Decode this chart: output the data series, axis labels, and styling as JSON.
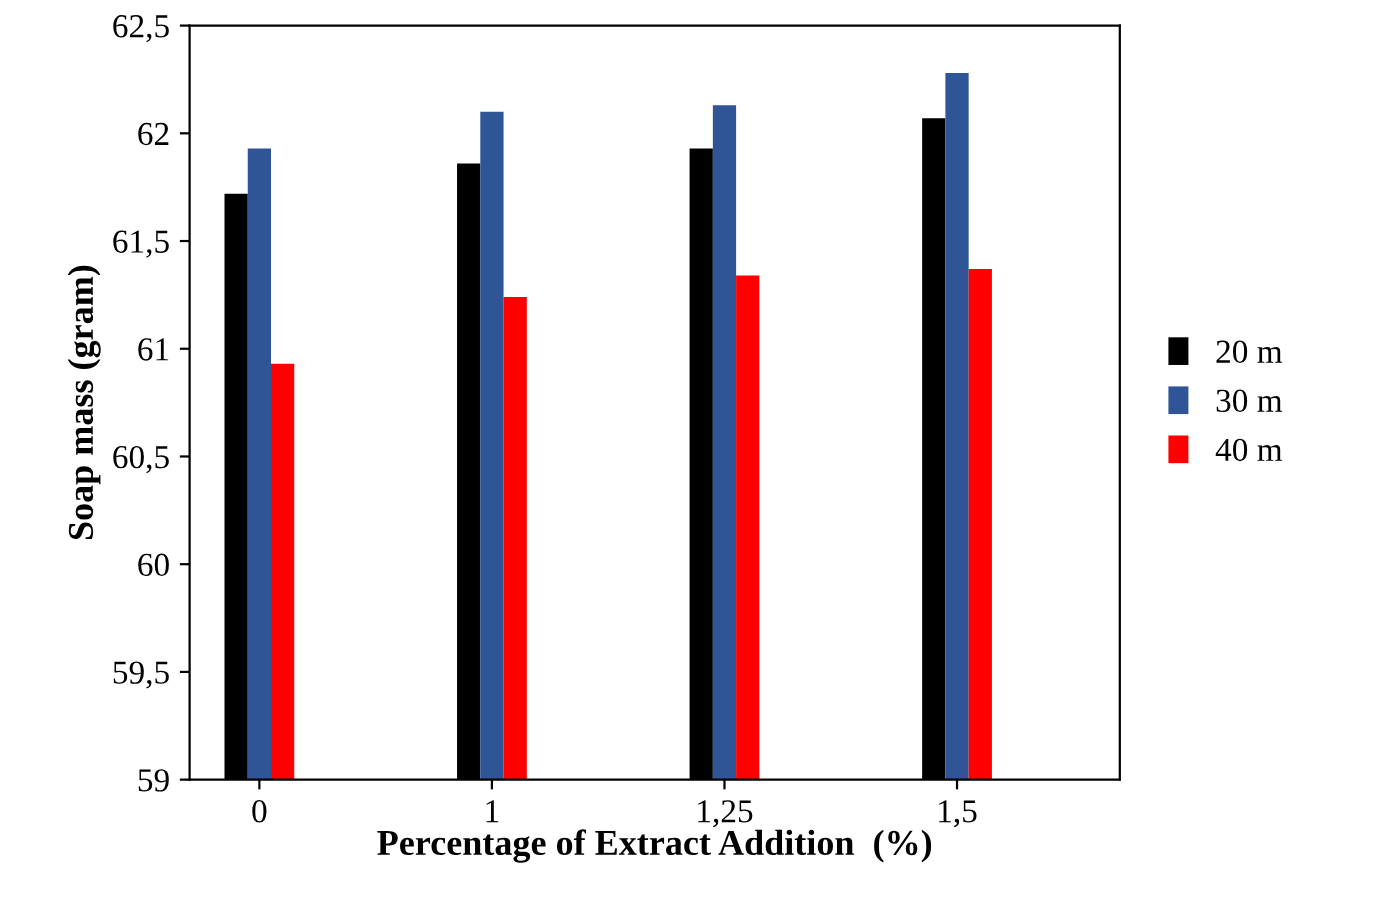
{
  "chart_data": {
    "type": "bar",
    "xlabel": "Percentage of Extract Addition  (%)",
    "ylabel": "Soap mass (gram)",
    "categories": [
      "0",
      "1",
      "1,25",
      "1,5"
    ],
    "series": [
      {
        "name": "20 m",
        "color": "#000000",
        "values": [
          61.72,
          61.86,
          61.93,
          62.07
        ]
      },
      {
        "name": "30 m",
        "color": "#2f5597",
        "values": [
          61.93,
          62.1,
          62.13,
          62.28
        ]
      },
      {
        "name": "40 m",
        "color": "#ff0000",
        "values": [
          60.93,
          61.24,
          61.34,
          61.37
        ]
      }
    ],
    "ylim": [
      59,
      62.5
    ],
    "yticks": [
      59,
      {
        "value": 59.5,
        "label": "59,5"
      },
      60,
      {
        "value": 60.5,
        "label": "60,5"
      },
      61,
      {
        "value": 61.5,
        "label": "61,5"
      },
      62,
      {
        "value": 62.5,
        "label": "62,5"
      }
    ],
    "grid": false,
    "legend": "right"
  }
}
